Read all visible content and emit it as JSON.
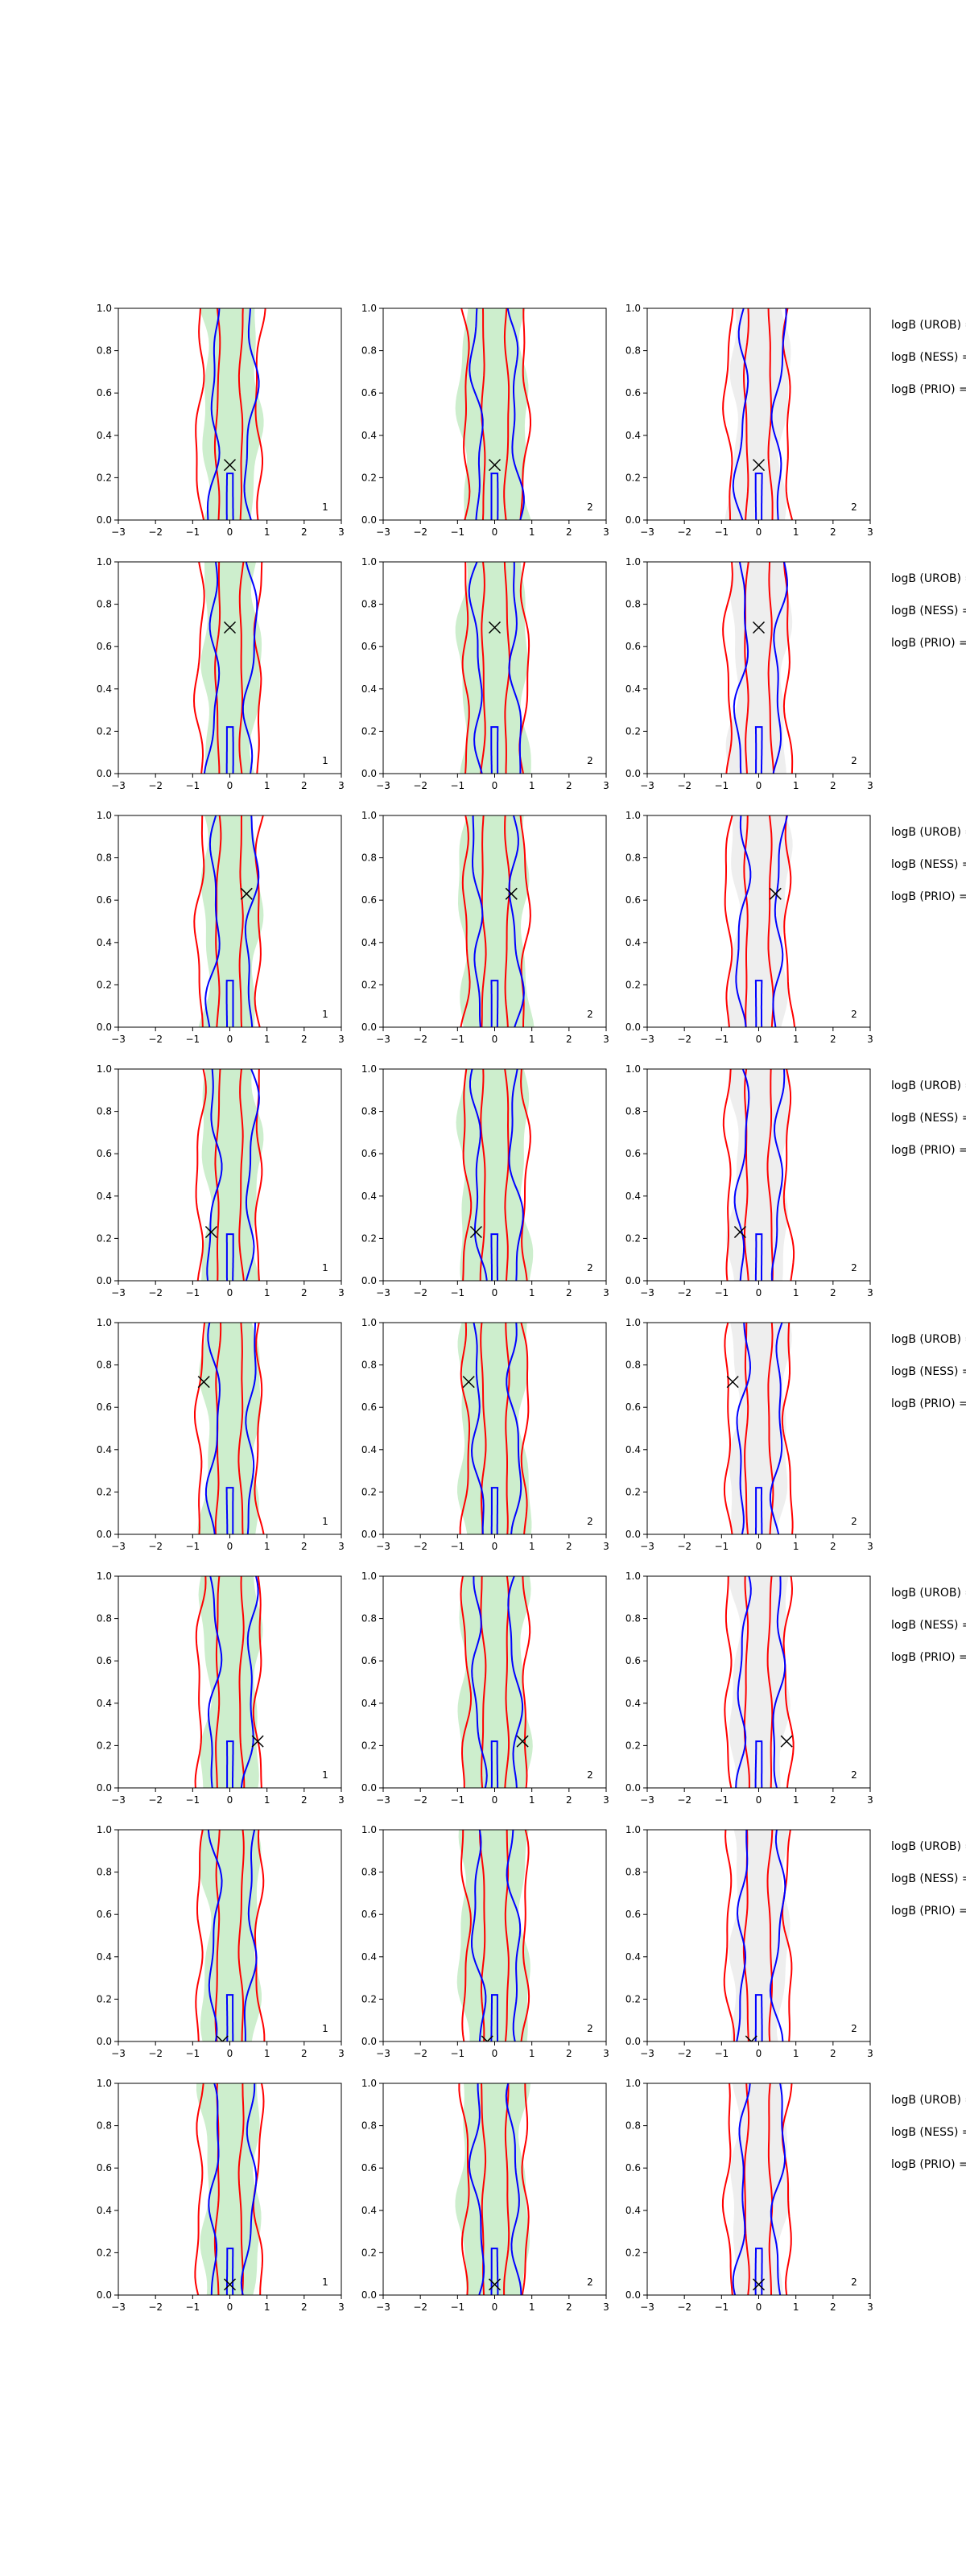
{
  "chart_data": {
    "type": "contour-grid",
    "rows": 8,
    "columns": 3,
    "xlim": [
      -3,
      3
    ],
    "ylim": [
      0,
      1
    ],
    "xticks": [
      "−3",
      "−2",
      "−1",
      "0",
      "1",
      "2",
      "3"
    ],
    "yticks": [
      "0.0",
      "0.2",
      "0.4",
      "0.6",
      "0.8",
      "1.0"
    ],
    "panel_labels": [
      "1",
      "2",
      "2"
    ],
    "stat_labels": [
      "logB (UROB) =",
      "logB (NESS) =",
      "logB (PRIO) ="
    ],
    "markers": [
      {
        "x": 0.0,
        "y": 0.26
      },
      {
        "x": 0.0,
        "y": 0.69
      },
      {
        "x": 0.45,
        "y": 0.63
      },
      {
        "x": -0.5,
        "y": 0.23
      },
      {
        "x": -0.7,
        "y": 0.72
      },
      {
        "x": 0.75,
        "y": 0.22
      },
      {
        "x": -0.2,
        "y": 0.0
      },
      {
        "x": 0.0,
        "y": 0.05
      }
    ],
    "colors": {
      "outer_contour": "#ff0000",
      "inner_contour": "#0000ff",
      "fill_col1_col2": "#c8ecc8",
      "fill_col3": "#ececec",
      "marker": "#000000"
    }
  }
}
